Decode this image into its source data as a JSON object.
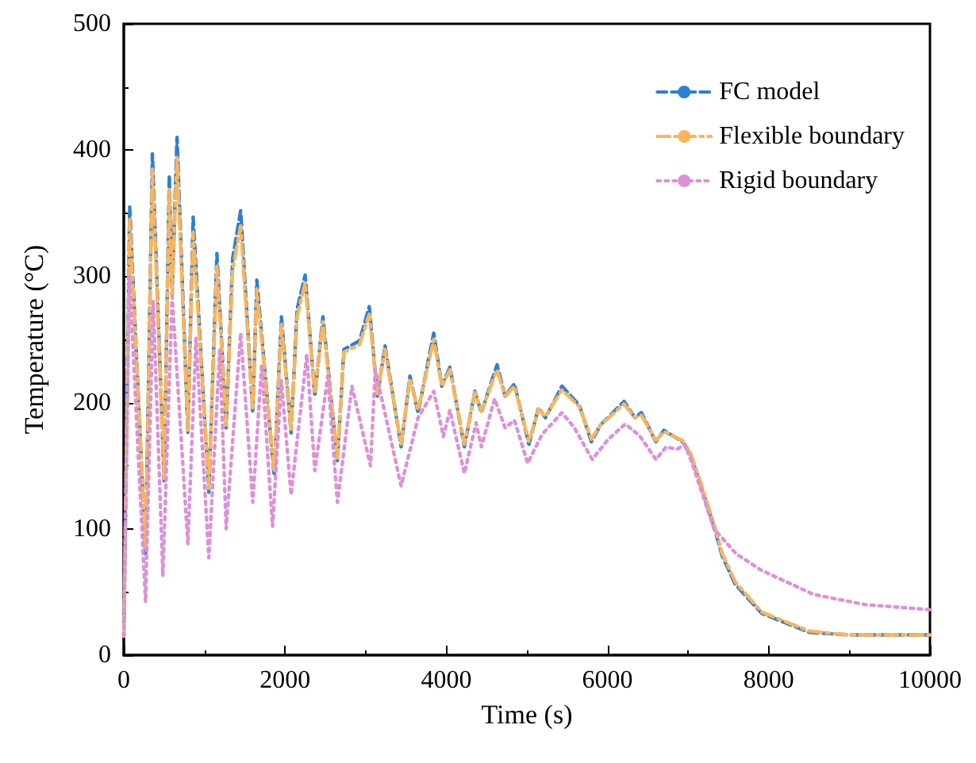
{
  "chart_data": {
    "type": "line",
    "xlabel": "Time (s)",
    "ylabel": "Temperature (°C)",
    "xlim": [
      0,
      10000
    ],
    "xticks": [
      0,
      2000,
      4000,
      6000,
      8000,
      10000
    ],
    "ylim": [
      0,
      500
    ],
    "yticks": [
      0,
      100,
      200,
      300,
      400,
      500
    ],
    "grid": false,
    "legend": "top right",
    "marker": "none",
    "series": [
      {
        "name": "FC model",
        "color": "#2b7fd4",
        "line_style": "dashed",
        "x": [
          0,
          73,
          270,
          355,
          500,
          565,
          600,
          660,
          795,
          860,
          1055,
          1155,
          1270,
          1350,
          1450,
          1600,
          1650,
          1865,
          1955,
          2075,
          2150,
          2250,
          2370,
          2470,
          2650,
          2730,
          2925,
          3045,
          3145,
          3240,
          3440,
          3550,
          3650,
          3845,
          3945,
          4045,
          4225,
          4355,
          4435,
          4630,
          4730,
          4845,
          5025,
          5145,
          5230,
          5435,
          5650,
          5800,
          5910,
          6205,
          6340,
          6420,
          6600,
          6700,
          6830,
          6930,
          7030,
          7160,
          7320,
          7420,
          7585,
          7915,
          8505,
          9000,
          10000
        ],
        "values": [
          15,
          355,
          80,
          397,
          138,
          380,
          285,
          410,
          176,
          347,
          129,
          318,
          180,
          314,
          352,
          192,
          297,
          142,
          268,
          176,
          274,
          301,
          205,
          268,
          154,
          242,
          249,
          276,
          205,
          245,
          165,
          221,
          192,
          255,
          213,
          228,
          165,
          209,
          192,
          230,
          205,
          215,
          167,
          196,
          188,
          213,
          198,
          169,
          182,
          201,
          188,
          192,
          169,
          178,
          173,
          169,
          159,
          134,
          102,
          79,
          56,
          33,
          18,
          16,
          16
        ]
      },
      {
        "name": "Flexible boundary",
        "color": "#f9b45c",
        "line_style": "dashdot",
        "x": [
          0,
          73,
          270,
          355,
          500,
          565,
          600,
          660,
          795,
          860,
          1055,
          1155,
          1270,
          1350,
          1450,
          1600,
          1650,
          1865,
          1955,
          2075,
          2150,
          2250,
          2370,
          2470,
          2650,
          2730,
          2925,
          3045,
          3145,
          3240,
          3440,
          3550,
          3650,
          3845,
          3945,
          4045,
          4225,
          4355,
          4435,
          4630,
          4730,
          4845,
          5025,
          5145,
          5230,
          5435,
          5650,
          5800,
          5910,
          6205,
          6340,
          6420,
          6600,
          6700,
          6830,
          6930,
          7030,
          7160,
          7320,
          7420,
          7585,
          7915,
          8505,
          9000,
          10000
        ],
        "values": [
          15,
          345,
          85,
          385,
          140,
          370,
          285,
          395,
          178,
          335,
          132,
          308,
          182,
          305,
          340,
          194,
          290,
          145,
          262,
          178,
          268,
          295,
          207,
          264,
          156,
          240,
          246,
          270,
          207,
          242,
          167,
          219,
          194,
          250,
          213,
          226,
          167,
          208,
          193,
          226,
          205,
          213,
          169,
          195,
          189,
          210,
          197,
          171,
          182,
          199,
          188,
          190,
          170,
          177,
          173,
          170,
          160,
          136,
          104,
          81,
          58,
          34,
          19,
          16,
          16
        ]
      },
      {
        "name": "Rigid boundary",
        "color": "#dc91d8",
        "line_style": "dotted",
        "x": [
          0,
          70,
          270,
          365,
          485,
          600,
          795,
          895,
          1055,
          1190,
          1270,
          1450,
          1600,
          1710,
          1845,
          1955,
          2075,
          2270,
          2370,
          2530,
          2650,
          2830,
          3060,
          3120,
          3440,
          3650,
          3845,
          3965,
          4045,
          4225,
          4370,
          4435,
          4600,
          4730,
          4845,
          5010,
          5190,
          5435,
          5590,
          5810,
          6010,
          6220,
          6395,
          6600,
          6730,
          6860,
          6960,
          7060,
          7320,
          7600,
          7915,
          8560,
          9200,
          10000
        ],
        "values": [
          15,
          300,
          42,
          280,
          63,
          284,
          88,
          251,
          77,
          242,
          100,
          255,
          121,
          230,
          102,
          217,
          127,
          238,
          146,
          221,
          121,
          213,
          150,
          226,
          134,
          188,
          209,
          173,
          194,
          144,
          184,
          165,
          203,
          180,
          186,
          152,
          175,
          192,
          180,
          155,
          171,
          183,
          174,
          155,
          165,
          163,
          167,
          150,
          100,
          80,
          67,
          48,
          40,
          36
        ]
      }
    ]
  }
}
